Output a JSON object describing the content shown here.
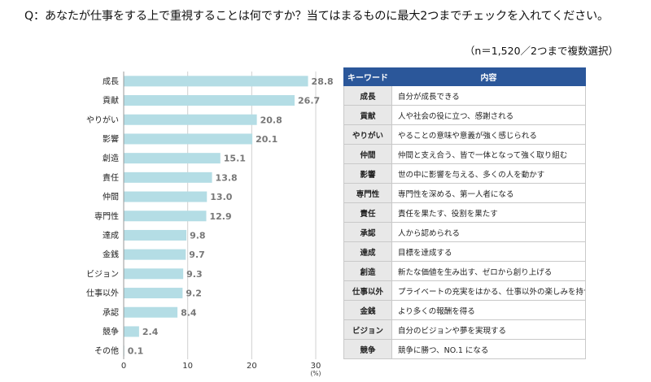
{
  "question": "Q：あなたが仕事をする上で重視することは何ですか？当てはまるものに最大2つまでチェックを入れてください。",
  "note": "（n＝1,520／2つまで複数選択）",
  "colors": {
    "bar": "#b4dde5",
    "header_bg": "#2b579a",
    "keyword_bg": "#e8e8e8",
    "grid": "#d0d0d0"
  },
  "chart_data": {
    "type": "bar",
    "orientation": "horizontal",
    "title": "",
    "categories": [
      "成長",
      "貢献",
      "やりがい",
      "影響",
      "創造",
      "責任",
      "仲間",
      "専門性",
      "達成",
      "金銭",
      "ビジョン",
      "仕事以外",
      "承認",
      "競争",
      "その他"
    ],
    "values": [
      28.8,
      26.7,
      20.8,
      20.1,
      15.1,
      13.8,
      13.0,
      12.9,
      9.8,
      9.7,
      9.3,
      9.2,
      8.4,
      2.4,
      0.1
    ],
    "value_labels": [
      "28.8",
      "26.7",
      "20.8",
      "20.1",
      "15.1",
      "13.8",
      "13.0",
      "12.9",
      "9.8",
      "9.7",
      "9.3",
      "9.2",
      "8.4",
      "2.4",
      "0.1"
    ],
    "xlim": [
      0,
      30
    ],
    "xticks": [
      "0",
      "10",
      "20",
      "30"
    ],
    "xlabel": "",
    "unit": "(%)",
    "grid": true
  },
  "table": {
    "headers": [
      "キーワード",
      "内容"
    ],
    "rows": [
      [
        "成長",
        "自分が成長できる"
      ],
      [
        "貢献",
        "人や社会の役に立つ、感謝される"
      ],
      [
        "やりがい",
        "やることの意味や意義が強く感じられる"
      ],
      [
        "仲間",
        "仲間と支え合う、皆で一体となって強く取り組む"
      ],
      [
        "影響",
        "世の中に影響を与える、多くの人を動かす"
      ],
      [
        "専門性",
        "専門性を深める、第一人者になる"
      ],
      [
        "責任",
        "責任を果たす、役割を果たす"
      ],
      [
        "承認",
        "人から認められる"
      ],
      [
        "達成",
        "目標を達成する"
      ],
      [
        "創造",
        "新たな価値を生み出す、ゼロから創り上げる"
      ],
      [
        "仕事以外",
        "プライベートの充実をはかる、仕事以外の楽しみを持つ"
      ],
      [
        "金銭",
        "より多くの報酬を得る"
      ],
      [
        "ビジョン",
        "自分のビジョンや夢を実現する"
      ],
      [
        "競争",
        "競争に勝つ、NO.1 になる"
      ]
    ]
  }
}
